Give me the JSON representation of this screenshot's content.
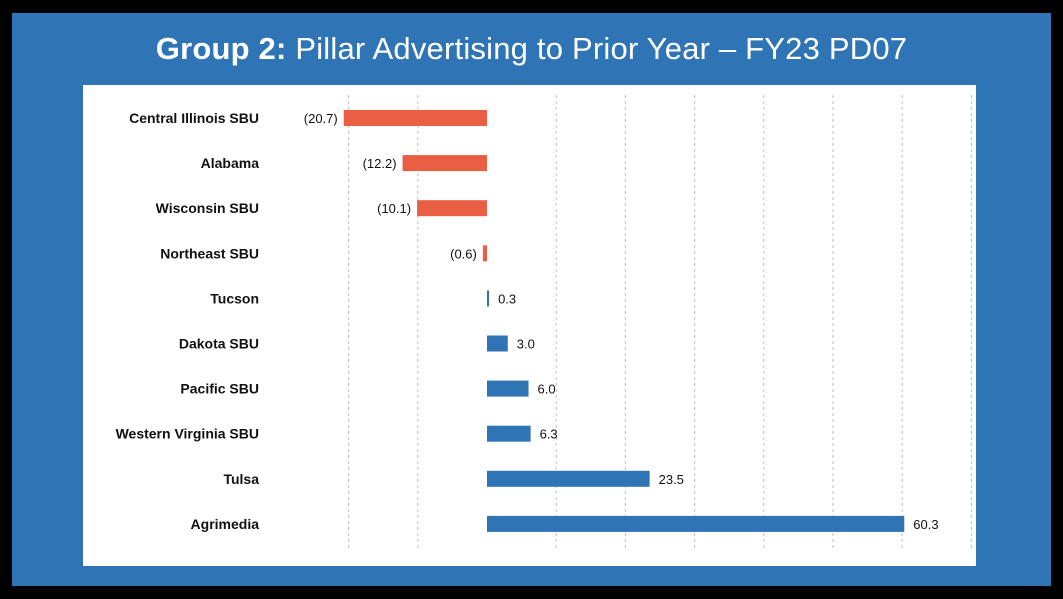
{
  "title": {
    "bold": "Group 2:",
    "rest": " Pillar Advertising to Prior Year – FY23 PD07"
  },
  "colors": {
    "background": "#2f74b5",
    "positive": "#2f74b5",
    "negative": "#e85f44",
    "grid": "#bfbfbf"
  },
  "chart_data": {
    "type": "bar",
    "orientation": "horizontal",
    "categories": [
      "Central Illinois SBU",
      "Alabama",
      "Wisconsin SBU",
      "Northeast SBU",
      "Tucson",
      "Dakota SBU",
      "Pacific SBU",
      "Western Virginia SBU",
      "Tulsa",
      "Agrimedia"
    ],
    "values": [
      -20.7,
      -12.2,
      -10.1,
      -0.6,
      0.3,
      3.0,
      6.0,
      6.3,
      23.5,
      60.3
    ],
    "value_labels": [
      "(20.7)",
      "(12.2)",
      "(10.1)",
      "(0.6)",
      "0.3",
      "3.0",
      "6.0",
      "6.3",
      "23.5",
      "60.3"
    ],
    "xlim": [
      -20,
      70
    ],
    "gridlines": [
      -20,
      -10,
      0,
      10,
      20,
      30,
      40,
      50,
      60,
      70
    ],
    "grid": true,
    "legend": "none"
  }
}
